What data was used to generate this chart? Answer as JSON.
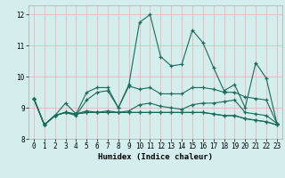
{
  "xlabel": "Humidex (Indice chaleur)",
  "background_color": "#d4eeee",
  "grid_color": "#e8b8b8",
  "line_color": "#1a6a5a",
  "xlim": [
    -0.5,
    23.5
  ],
  "ylim": [
    8.0,
    12.3
  ],
  "yticks": [
    8,
    9,
    10,
    11,
    12
  ],
  "xticks": [
    0,
    1,
    2,
    3,
    4,
    5,
    6,
    7,
    8,
    9,
    10,
    11,
    12,
    13,
    14,
    15,
    16,
    17,
    18,
    19,
    20,
    21,
    22,
    23
  ],
  "lines": [
    [
      9.3,
      8.45,
      8.75,
      9.15,
      8.8,
      9.5,
      9.65,
      9.65,
      9.0,
      9.75,
      11.75,
      12.0,
      10.65,
      10.35,
      10.4,
      11.5,
      11.1,
      10.3,
      9.55,
      9.75,
      9.0,
      10.45,
      9.95,
      8.5
    ],
    [
      9.3,
      8.45,
      8.75,
      8.85,
      8.75,
      9.25,
      9.5,
      9.55,
      9.0,
      9.7,
      9.6,
      9.65,
      9.45,
      9.45,
      9.45,
      9.65,
      9.65,
      9.6,
      9.5,
      9.5,
      9.35,
      9.3,
      9.25,
      8.5
    ],
    [
      9.3,
      8.45,
      8.75,
      8.85,
      8.8,
      8.9,
      8.85,
      8.9,
      8.85,
      8.9,
      9.1,
      9.15,
      9.05,
      9.0,
      8.95,
      9.1,
      9.15,
      9.15,
      9.2,
      9.25,
      8.85,
      8.8,
      8.75,
      8.5
    ],
    [
      9.3,
      8.45,
      8.75,
      8.85,
      8.8,
      8.85,
      8.85,
      8.85,
      8.85,
      8.85,
      8.85,
      8.85,
      8.85,
      8.85,
      8.85,
      8.85,
      8.85,
      8.8,
      8.75,
      8.75,
      8.65,
      8.6,
      8.55,
      8.45
    ],
    [
      9.3,
      8.45,
      8.75,
      8.85,
      8.8,
      8.85,
      8.85,
      8.85,
      8.85,
      8.85,
      8.85,
      8.85,
      8.85,
      8.85,
      8.85,
      8.85,
      8.85,
      8.8,
      8.75,
      8.75,
      8.65,
      8.6,
      8.55,
      8.45
    ]
  ]
}
